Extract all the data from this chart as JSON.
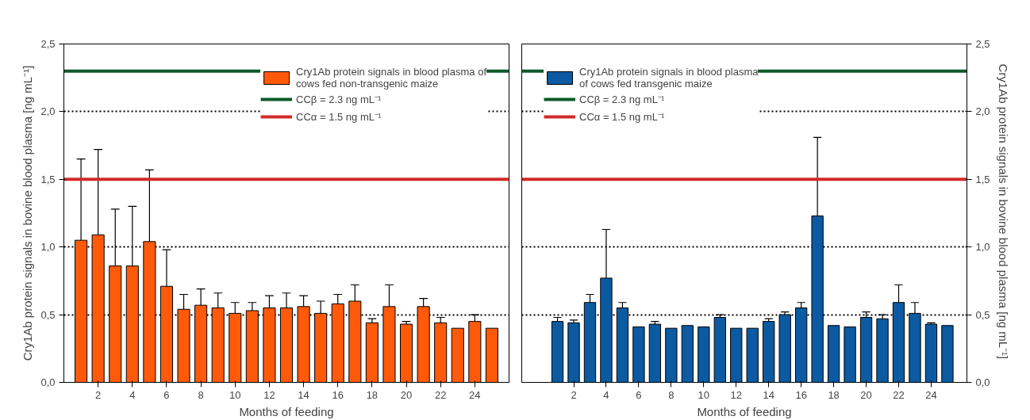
{
  "chart_data": [
    {
      "type": "bar",
      "xlabel": "Months of feeding",
      "ylabel": "Cry1Ab protein signals in bovine blood plasma [ng mL⁻¹]",
      "x": [
        1,
        2,
        3,
        4,
        5,
        6,
        7,
        8,
        9,
        10,
        11,
        12,
        13,
        14,
        15,
        16,
        17,
        18,
        19,
        20,
        21,
        22,
        23,
        24,
        25
      ],
      "xlim": [
        0,
        26
      ],
      "xticks": [
        2,
        4,
        6,
        8,
        10,
        12,
        14,
        16,
        18,
        20,
        22,
        24
      ],
      "ylim": [
        0,
        2.5
      ],
      "yticks": [
        {
          "value": 0,
          "label": "0,0"
        },
        {
          "value": 0.5,
          "label": "0,5"
        },
        {
          "value": 1,
          "label": "1,0"
        },
        {
          "value": 1.5,
          "label": "1,5"
        },
        {
          "value": 2,
          "label": "2,0"
        },
        {
          "value": 2.5,
          "label": "2,5"
        }
      ],
      "series": [
        {
          "name": "Cry1Ab protein signals in blood plasma of\ncows fed non-transgenic maize",
          "color": "#ff5a0a",
          "values": [
            1.05,
            1.09,
            0.86,
            0.86,
            1.04,
            0.71,
            0.54,
            0.57,
            0.55,
            0.51,
            0.53,
            0.55,
            0.55,
            0.56,
            0.51,
            0.58,
            0.6,
            0.44,
            0.56,
            0.43,
            0.56,
            0.44,
            0.4,
            0.45,
            0.4
          ],
          "errors": [
            [
              1.05,
              1.65
            ],
            [
              1.09,
              1.72
            ],
            [
              0.86,
              1.28
            ],
            [
              0.86,
              1.3
            ],
            [
              1.04,
              1.57
            ],
            [
              0.71,
              0.98
            ],
            [
              0.54,
              0.65
            ],
            [
              0.57,
              0.69
            ],
            [
              0.55,
              0.66
            ],
            [
              0.51,
              0.59
            ],
            [
              0.53,
              0.59
            ],
            [
              0.55,
              0.64
            ],
            [
              0.55,
              0.66
            ],
            [
              0.56,
              0.64
            ],
            [
              0.51,
              0.6
            ],
            [
              0.58,
              0.65
            ],
            [
              0.6,
              0.72
            ],
            [
              0.44,
              0.47
            ],
            [
              0.56,
              0.72
            ],
            [
              0.43,
              0.45
            ],
            [
              0.56,
              0.62
            ],
            [
              0.44,
              0.48
            ],
            null,
            [
              0.45,
              0.5
            ],
            null
          ]
        }
      ],
      "ref_lines": [
        {
          "axis": "y",
          "value": 2.3,
          "label": "CCβ = 2.3 ng mL⁻¹",
          "color": "#0d5a2a"
        },
        {
          "axis": "y",
          "value": 1.5,
          "label": "CCα = 1.5 ng mL⁻¹",
          "color": "#d42a2a"
        }
      ],
      "grid": "y",
      "legend": "top right",
      "line_style": "dotted"
    },
    {
      "type": "bar",
      "xlabel": "Months of feeding",
      "y2label": "Cry1Ab protein signals  in bovine blood plasma [ng mL⁻¹]",
      "x": [
        1,
        2,
        3,
        4,
        5,
        6,
        7,
        8,
        9,
        10,
        11,
        12,
        13,
        14,
        15,
        16,
        17,
        18,
        19,
        20,
        21,
        22,
        23,
        24,
        25
      ],
      "xlim": [
        -1.2,
        26.2
      ],
      "xticks": [
        2,
        4,
        6,
        8,
        10,
        12,
        14,
        16,
        18,
        20,
        22,
        24
      ],
      "y2lim": [
        0,
        2.5
      ],
      "y2ticks": [
        {
          "value": 0,
          "label": "0,0"
        },
        {
          "value": 0.5,
          "label": "0,5"
        },
        {
          "value": 1,
          "label": "1,0"
        },
        {
          "value": 1.5,
          "label": "1,5"
        },
        {
          "value": 2,
          "label": "2,0"
        },
        {
          "value": 2.5,
          "label": "2,5"
        }
      ],
      "series": [
        {
          "name": "Cry1Ab protein signals in blood plasma\nof cows fed transgenic maize",
          "color": "#0b5aa2",
          "axis": "y2",
          "values": [
            0.45,
            0.44,
            0.59,
            0.77,
            0.55,
            0.41,
            0.43,
            0.4,
            0.42,
            0.41,
            0.48,
            0.4,
            0.4,
            0.45,
            0.5,
            0.55,
            1.23,
            0.42,
            0.41,
            0.48,
            0.47,
            0.59,
            0.51,
            0.43,
            0.42
          ],
          "errors": [
            [
              0.45,
              0.48
            ],
            [
              0.44,
              0.46
            ],
            [
              0.59,
              0.65
            ],
            [
              0.77,
              1.13
            ],
            [
              0.55,
              0.59
            ],
            null,
            [
              0.43,
              0.45
            ],
            null,
            null,
            null,
            [
              0.48,
              0.5
            ],
            null,
            null,
            [
              0.45,
              0.47
            ],
            [
              0.5,
              0.52
            ],
            [
              0.55,
              0.59
            ],
            [
              1.23,
              1.81
            ],
            null,
            null,
            [
              0.48,
              0.52
            ],
            [
              0.47,
              0.5
            ],
            [
              0.59,
              0.72
            ],
            [
              0.51,
              0.59
            ],
            [
              0.43,
              0.44
            ],
            null
          ]
        }
      ],
      "ref_lines": [
        {
          "axis": "y2",
          "value": 2.3,
          "label": "CCβ = 2.3 ng mL⁻¹",
          "color": "#0d5a2a"
        },
        {
          "axis": "y2",
          "value": 1.5,
          "label": "CCα = 1.5 ng mL⁻¹",
          "color": "#d42a2a"
        }
      ],
      "grid": "y",
      "legend": "top left",
      "line_style": "dotted"
    }
  ]
}
